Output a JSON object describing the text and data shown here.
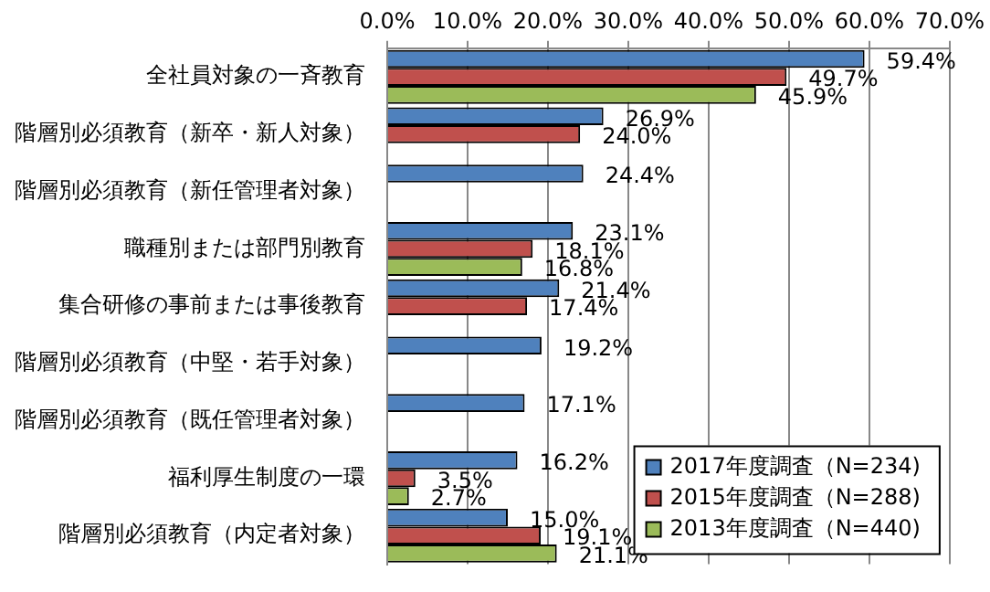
{
  "chart_data": {
    "type": "bar",
    "orientation": "horizontal",
    "categories": [
      "全社員対象の一斉教育",
      "階層別必須教育（新卒・新人対象）",
      "階層別必須教育（新任管理者対象）",
      "職種別または部門別教育",
      "集合研修の事前または事後教育",
      "階層別必須教育（中堅・若手対象）",
      "階層別必須教育（既任管理者対象）",
      "福利厚生制度の一環",
      "階層別必須教育（内定者対象）"
    ],
    "series": [
      {
        "name": "2017年度調査（N=234)",
        "color": "#4f81bd",
        "values": [
          59.4,
          26.9,
          24.4,
          23.1,
          21.4,
          19.2,
          17.1,
          16.2,
          15.0
        ],
        "value_labels": [
          "59.4%",
          "26.9%",
          "24.4%",
          "23.1%",
          "21.4%",
          "19.2%",
          "17.1%",
          "16.2%",
          "15.0%"
        ]
      },
      {
        "name": "2015年度調査（N=288)",
        "color": "#c0504d",
        "values": [
          49.7,
          24.0,
          null,
          18.1,
          17.4,
          null,
          null,
          3.5,
          19.1
        ],
        "value_labels": [
          "49.7%",
          "24.0%",
          null,
          "18.1%",
          "17.4%",
          null,
          null,
          "3.5%",
          "19.1%"
        ]
      },
      {
        "name": "2013年度調査（N=440)",
        "color": "#9bbb59",
        "values": [
          45.9,
          null,
          null,
          16.8,
          null,
          null,
          null,
          2.7,
          21.1
        ],
        "value_labels": [
          "45.9%",
          null,
          null,
          "16.8%",
          null,
          null,
          null,
          "2.7%",
          "21.1%"
        ]
      }
    ],
    "xlim": [
      0,
      70
    ],
    "xticks": [
      {
        "value": 0,
        "label": "0.0%"
      },
      {
        "value": 10,
        "label": "10.0%"
      },
      {
        "value": 20,
        "label": "20.0%"
      },
      {
        "value": 30,
        "label": "30.0%"
      },
      {
        "value": 40,
        "label": "40.0%"
      },
      {
        "value": 50,
        "label": "50.0%"
      },
      {
        "value": 60,
        "label": "60.0%"
      },
      {
        "value": 70,
        "label": "70.0%"
      }
    ],
    "grid": "x",
    "legend": "bottom right"
  }
}
